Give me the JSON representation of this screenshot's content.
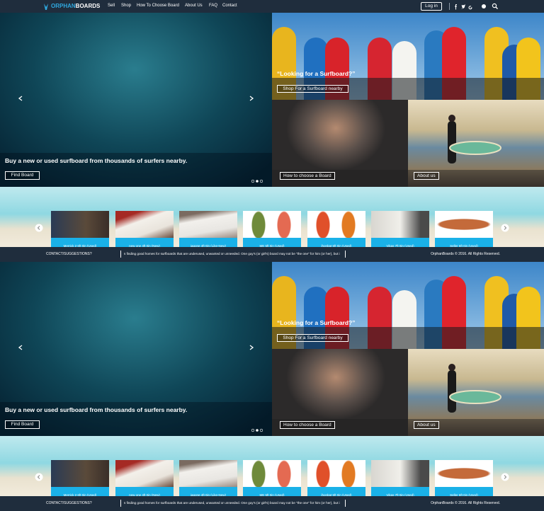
{
  "nav": {
    "logo": {
      "accent": "ORPHAN",
      "rest": "BOARDS"
    },
    "links": [
      "Sell",
      "Shop",
      "How To Choose Board",
      "About Us",
      "FAQ",
      "Contact"
    ],
    "login": "Log in"
  },
  "sections": [
    {
      "hero": {
        "main": {
          "caption": "Buy a new or used surfboard from thousands of surfers nearby.",
          "button": "Find Board"
        },
        "promo": {
          "caption": "“Looking for a Surfboard?”",
          "button": "Shop For a Surfboard nearby"
        },
        "tiles": [
          "How to choose a Board",
          "About us"
        ]
      },
      "products": [
        "Merrick 2 6ft 0in (Used)",
        "new one 4ft 0in (New)",
        "jagone 4ft 0in (Like-New)",
        "ME 5ft 0in (Used)",
        "jhonbat 5ft 0in (Used)",
        "Vikas 7ft 0in (Used)",
        "Seller 6ft 0in (Used)"
      ],
      "footer": {
        "contact": "CONTACT/SUGGESTIONS?",
        "ticker": "s finding good homes for surfboards that are underused, unwanted or unneeded. One guy's (or girl's) board may not be \"the one\" for him (or her), but i",
        "copyright": "OrphanBoards © 2016. All Rights Reserved."
      }
    },
    {
      "hero": {
        "main": {
          "caption": "Buy a new or used surfboard from thousands of surfers nearby.",
          "button": "Find Board"
        },
        "promo": {
          "caption": "“Looking for a Surfboard?”",
          "button": "Shop For a Surfboard nearby"
        },
        "tiles": [
          "How to choose a Board",
          "About us"
        ]
      },
      "products": [
        "Merrick 2 6ft 0in (Used)",
        "new one 4ft 0in (New)",
        "jagone 4ft 0in (Like-New)",
        "ME 5ft 0in (Used)",
        "jhonbat 5ft 0in (Used)",
        "Vikas 7ft 0in (Used)",
        "Seller 6ft 0in (Used)"
      ],
      "footer": {
        "contact": "CONTACT/SUGGESTIONS?",
        "ticker": "s finding good homes for surfboards that are underused, unwanted or unneeded. One guy's (or girl's) board may not be \"the one\" for him (or her), but i",
        "copyright": "OrphanBoards © 2016. All Rights Reserved."
      }
    }
  ]
}
